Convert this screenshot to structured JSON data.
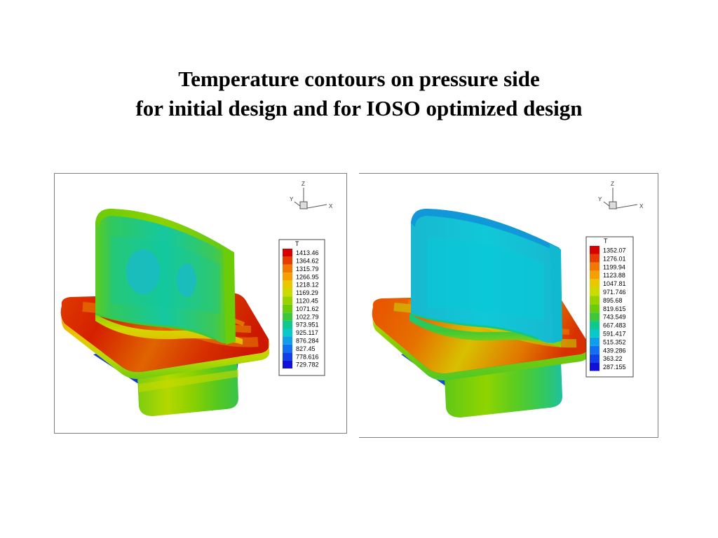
{
  "title": {
    "line1": "Temperature contours on pressure side",
    "line2": "for initial design and for IOSO optimized design"
  },
  "axes_triad": {
    "x": "X",
    "y": "Y",
    "z": "Z"
  },
  "legend_colors": [
    "#d70000",
    "#e63c00",
    "#f07800",
    "#f5a000",
    "#eac800",
    "#c8dc00",
    "#9ad200",
    "#6ccc08",
    "#3cc83a",
    "#10c88c",
    "#08c8c8",
    "#109ee8",
    "#1070f0",
    "#1040e8",
    "#1010d8"
  ],
  "panels": [
    {
      "id": "initial",
      "legend": {
        "title": "T",
        "values": [
          "1413.46",
          "1364.62",
          "1315.79",
          "1266.95",
          "1218.12",
          "1169.29",
          "1120.45",
          "1071.62",
          "1022.79",
          "973.951",
          "925.117",
          "876.284",
          "827.45",
          "778.616",
          "729.782"
        ]
      }
    },
    {
      "id": "optimized",
      "legend": {
        "title": "T",
        "values": [
          "1352.07",
          "1276.01",
          "1199.94",
          "1123.88",
          "1047.81",
          "971.746",
          "895.68",
          "819.615",
          "743.549",
          "667.483",
          "591.417",
          "515.352",
          "439.286",
          "363.22",
          "287.155"
        ]
      }
    }
  ]
}
